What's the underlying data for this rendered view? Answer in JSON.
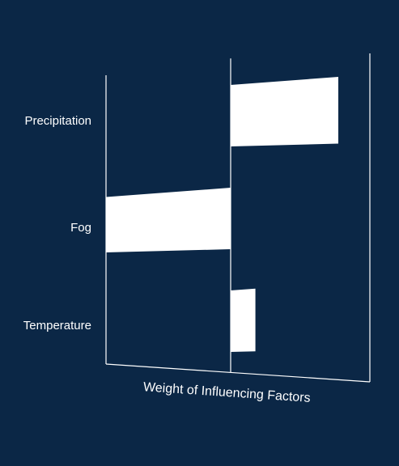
{
  "chart_data": {
    "type": "bar",
    "orientation": "horizontal",
    "categories": [
      "Precipitation",
      "Fog",
      "Temperature"
    ],
    "values": [
      0.87,
      -1.0,
      0.2
    ],
    "xlabel": "Weight of Influencing Factors",
    "ylabel": "",
    "xlim": [
      -1.0,
      1.13
    ],
    "grid": false,
    "legend": "none",
    "colors": {
      "background": "#0b2746",
      "bar": "#ffffff",
      "axis": "#ffffff",
      "text": "#ffffff"
    }
  }
}
